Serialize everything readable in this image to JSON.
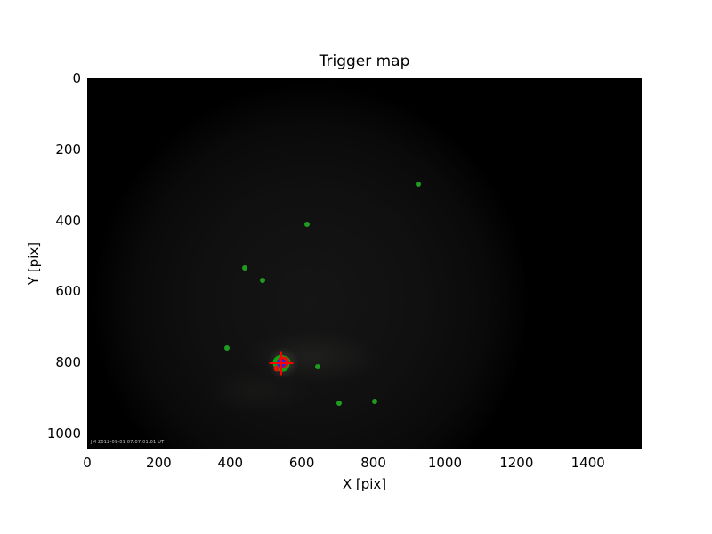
{
  "figure": {
    "title": "Trigger map",
    "xlabel": "X [pix]",
    "ylabel": "Y [pix]",
    "watermark_text": "JM 2012-09-01 07:07:01.01 UT",
    "figure_bg": "#ffffff",
    "plot_bg": "#000000"
  },
  "chart_data": {
    "type": "scatter",
    "title": "Trigger map",
    "xlabel": "X [pix]",
    "ylabel": "Y [pix]",
    "xlim": [
      0,
      1550
    ],
    "ylim": [
      0,
      1045
    ],
    "y_axis_inverted": true,
    "grid": false,
    "legend": false,
    "x_ticks": [
      0,
      200,
      400,
      600,
      800,
      1000,
      1200,
      1400
    ],
    "y_ticks": [
      0,
      200,
      400,
      600,
      800,
      1000
    ],
    "background_description": "very dark image of a dim circular disk with faint bright patch around trigger position",
    "series": [
      {
        "name": "trigger-pixels-green",
        "marker": "circle",
        "color": "#1f9c1f",
        "points": [
          [
            923,
            296
          ],
          [
            612,
            409
          ],
          [
            438,
            531
          ],
          [
            488,
            566
          ],
          [
            388,
            757
          ],
          [
            642,
            810
          ],
          [
            701,
            912
          ],
          [
            801,
            907
          ]
        ]
      },
      {
        "name": "trigger-centroid-composite",
        "marker": "composite",
        "center": [
          541,
          800
        ],
        "colors": {
          "blob_green": "#0da613",
          "blob_red": "#e41104",
          "core_blue": "#2828dc",
          "crosshair_red": "#ff0000"
        }
      }
    ]
  }
}
